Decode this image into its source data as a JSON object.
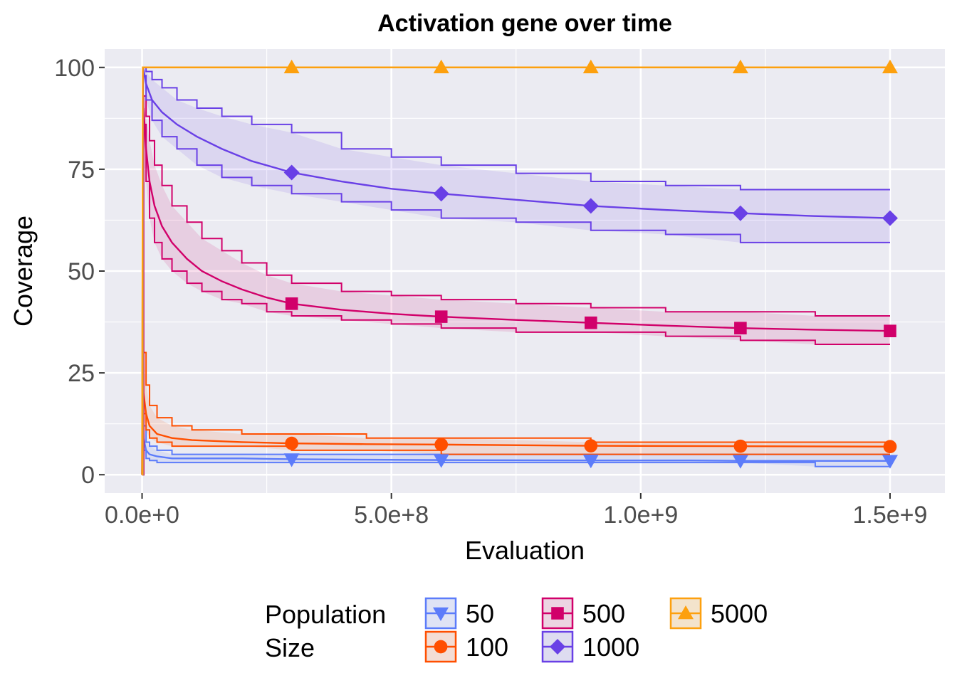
{
  "chart_data": {
    "type": "line",
    "title": "Activation gene over time",
    "xlabel": "Evaluation",
    "ylabel": "Coverage",
    "xlim": [
      -75000000,
      1610000000
    ],
    "ylim": [
      -4.5,
      104.5
    ],
    "x_ticks": [
      {
        "value": 0,
        "label": "0.0e+0"
      },
      {
        "value": 500000000,
        "label": "5.0e+8"
      },
      {
        "value": 1000000000,
        "label": "1.0e+9"
      },
      {
        "value": 1500000000,
        "label": "1.5e+9"
      }
    ],
    "y_ticks": [
      {
        "value": 0,
        "label": "0"
      },
      {
        "value": 25,
        "label": "25"
      },
      {
        "value": 50,
        "label": "50"
      },
      {
        "value": 75,
        "label": "75"
      },
      {
        "value": 100,
        "label": "100"
      }
    ],
    "grid": true,
    "legend": {
      "position": "bottom",
      "title_line1": "Population",
      "title_line2": "Size"
    },
    "marker_x": [
      300000000,
      600000000,
      900000000,
      1200000000,
      1500000000
    ],
    "series": [
      {
        "name": "50",
        "color": "#5c7cfa",
        "fill": "#dfe3f5",
        "marker": "triangle-down",
        "x": [
          0,
          3000000,
          8000000,
          15000000,
          30000000,
          60000000,
          100000000,
          200000000,
          300000000,
          450000000,
          600000000,
          900000000,
          1100000000,
          1200000000,
          1350000000,
          1500000000
        ],
        "median": [
          0,
          9,
          6,
          5,
          4.5,
          4,
          4,
          4,
          3.8,
          3.7,
          3.6,
          3.5,
          3.5,
          3.4,
          3.4,
          3.4
        ],
        "upper": [
          0,
          12,
          8,
          7,
          6,
          5,
          5,
          5,
          5,
          5,
          5,
          5,
          5,
          5,
          5,
          5
        ],
        "lower": [
          0,
          6,
          4,
          3.5,
          3,
          3,
          3,
          3,
          3,
          3,
          3,
          3,
          3,
          3,
          2,
          2
        ],
        "marker_values": [
          3.8,
          3.6,
          3.5,
          3.4,
          3.4
        ]
      },
      {
        "name": "100",
        "color": "#ff4f00",
        "fill": "#f3ddd5",
        "marker": "circle",
        "x": [
          0,
          3000000,
          8000000,
          15000000,
          30000000,
          60000000,
          100000000,
          200000000,
          300000000,
          450000000,
          600000000,
          900000000,
          1200000000,
          1500000000
        ],
        "median": [
          0,
          20,
          15,
          12,
          10,
          9,
          8.5,
          8,
          7.7,
          7.5,
          7.4,
          7.1,
          7,
          6.9
        ],
        "upper": [
          0,
          30,
          22,
          17,
          14,
          12,
          11,
          10,
          10,
          9,
          9,
          8,
          8,
          8
        ],
        "lower": [
          0,
          15,
          11,
          9,
          8,
          7,
          7,
          7,
          6,
          6,
          5,
          5,
          5,
          5
        ],
        "marker_values": [
          7.7,
          7.4,
          7.1,
          7.0,
          6.9
        ]
      },
      {
        "name": "500",
        "color": "#d1006a",
        "fill": "#ecd4e2",
        "marker": "square",
        "x": [
          0,
          3000000,
          8000000,
          15000000,
          25000000,
          40000000,
          60000000,
          90000000,
          120000000,
          160000000,
          200000000,
          250000000,
          300000000,
          400000000,
          500000000,
          600000000,
          750000000,
          900000000,
          1050000000,
          1200000000,
          1350000000,
          1500000000
        ],
        "median": [
          0,
          90,
          80,
          72,
          66,
          61,
          57,
          53,
          50,
          47.5,
          45.5,
          43.5,
          42,
          40.5,
          39.5,
          38.8,
          38,
          37.3,
          36.6,
          36,
          35.6,
          35.3
        ],
        "upper": [
          0,
          93,
          88,
          82,
          76,
          71,
          66,
          62,
          58,
          55,
          52,
          49,
          47,
          45,
          44,
          43,
          42,
          41,
          40,
          40,
          39,
          39
        ],
        "lower": [
          0,
          86,
          72,
          63,
          57,
          53,
          50,
          47,
          45,
          43,
          42,
          40,
          39,
          38,
          37,
          36,
          35,
          35,
          34,
          33,
          32,
          32
        ],
        "marker_values": [
          42.0,
          38.8,
          37.3,
          36.0,
          35.3
        ]
      },
      {
        "name": "1000",
        "color": "#6940e6",
        "fill": "#dedcf0",
        "marker": "diamond",
        "x": [
          0,
          2000000,
          8000000,
          20000000,
          40000000,
          70000000,
          110000000,
          160000000,
          220000000,
          300000000,
          400000000,
          500000000,
          600000000,
          750000000,
          900000000,
          1050000000,
          1200000000,
          1350000000,
          1500000000
        ],
        "median": [
          0,
          100,
          96,
          92,
          89,
          86,
          83,
          80,
          77,
          74.2,
          72,
          70.2,
          69,
          67.5,
          66,
          65,
          64.2,
          63.5,
          63
        ],
        "upper": [
          0,
          100,
          99,
          97,
          95,
          92,
          90,
          88,
          86,
          84,
          80,
          78,
          76,
          74,
          72,
          71,
          70,
          70,
          70
        ],
        "lower": [
          0,
          98,
          92,
          87,
          83,
          80,
          76,
          73,
          71,
          69,
          67,
          65,
          63,
          62,
          60,
          59,
          57,
          57,
          57
        ],
        "marker_values": [
          74.2,
          69.0,
          66.0,
          64.2,
          63.0
        ]
      },
      {
        "name": "5000",
        "color": "#fda00e",
        "fill": "#f3e3cc",
        "marker": "triangle-up",
        "x": [
          0,
          1500000,
          1500000000
        ],
        "median": [
          0,
          100,
          100
        ],
        "upper": [
          0,
          100,
          100
        ],
        "lower": [
          0,
          100,
          100
        ],
        "marker_values": [
          100,
          100,
          100,
          100,
          100
        ]
      }
    ]
  }
}
